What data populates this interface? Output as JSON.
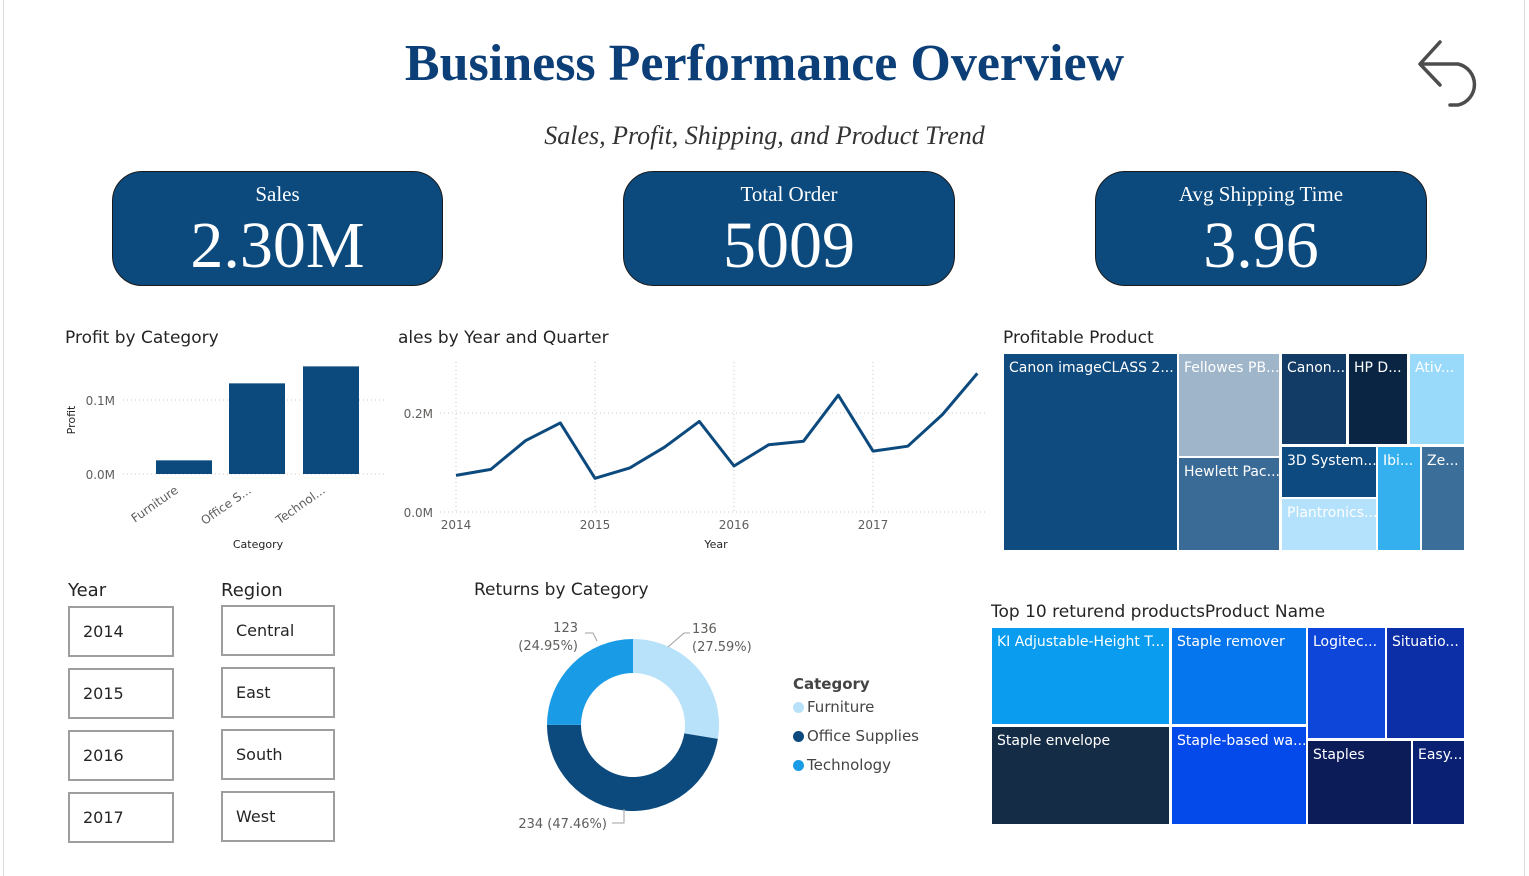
{
  "header": {
    "title": "Business Performance Overview",
    "subtitle": "Sales, Profit, Shipping, and Product Trend",
    "back_icon": "back-arrow-icon"
  },
  "kpis": {
    "sales": {
      "label": "Sales",
      "value": "2.30M"
    },
    "orders": {
      "label": "Total Order",
      "value": "5009"
    },
    "shipping": {
      "label": "Avg Shipping Time",
      "value": "3.96"
    }
  },
  "profit_chart": {
    "title": "Profit by Category",
    "xlabel": "Category",
    "ylabel": "Profit",
    "y_ticks": [
      "0.1M",
      "0.0M"
    ],
    "x_tick_labels": [
      "Furniture",
      "Office S...",
      "Technol..."
    ]
  },
  "sales_chart": {
    "title": "ales by Year and Quarter",
    "xlabel": "Year",
    "y_ticks": [
      "0.2M",
      "0.0M"
    ],
    "x_ticks": [
      "2014",
      "2015",
      "2016",
      "2017"
    ]
  },
  "returns_chart": {
    "title": "Returns by Category",
    "legend_title": "Category",
    "labels": [
      {
        "line1": "136",
        "line2": "(27.59%)"
      },
      {
        "line1": "234 (47.46%)"
      },
      {
        "line1": "123",
        "line2": "(24.95%)"
      }
    ],
    "legend": [
      "Furniture",
      "Office Supplies",
      "Technology"
    ]
  },
  "profitable_product": {
    "title": "Profitable Product",
    "tiles": [
      "Canon imageCLASS 2...",
      "Fellowes PB...",
      "Canon...",
      "HP D...",
      "Ativ...",
      "Hewlett Pac...",
      "3D System...",
      "Ibi...",
      "Ze...",
      "Plantronics..."
    ]
  },
  "top_returned": {
    "title": "Top 10 returend productsProduct Name",
    "tiles": [
      "KI Adjustable-Height T...",
      "Staple remover",
      "Logitec...",
      "Situatio...",
      "Staple envelope",
      "Staple-based wa...",
      "Staples",
      "Easy..."
    ]
  },
  "slicers": {
    "year": {
      "title": "Year",
      "items": [
        "2014",
        "2015",
        "2016",
        "2017"
      ]
    },
    "region": {
      "title": "Region",
      "items": [
        "Central",
        "East",
        "South",
        "West"
      ]
    }
  },
  "colors": {
    "primary": "#0c4a7e",
    "furniture": "#b8e1fa",
    "office_supplies": "#0c4a7e",
    "technology": "#1a9be6"
  },
  "chart_data": [
    {
      "type": "bar",
      "title": "Profit by Category",
      "xlabel": "Category",
      "ylabel": "Profit",
      "categories": [
        "Furniture",
        "Office Supplies",
        "Technology"
      ],
      "values": [
        18451,
        122491,
        145455
      ],
      "ylim": [
        0,
        150000
      ]
    },
    {
      "type": "line",
      "title": "ales by Year and Quarter",
      "xlabel": "Year",
      "x": [
        "2014 Q1",
        "2014 Q2",
        "2014 Q3",
        "2014 Q4",
        "2015 Q1",
        "2015 Q2",
        "2015 Q3",
        "2015 Q4",
        "2016 Q1",
        "2016 Q2",
        "2016 Q3",
        "2016 Q4",
        "2017 Q1",
        "2017 Q2",
        "2017 Q3",
        "2017 Q4"
      ],
      "values": [
        74000,
        86000,
        144000,
        180000,
        68000,
        89000,
        131000,
        183000,
        93000,
        136000,
        143000,
        236000,
        123000,
        133000,
        197000,
        280000
      ],
      "ylim": [
        0,
        300000
      ]
    },
    {
      "type": "pie",
      "title": "Returns by Category",
      "categories": [
        "Furniture",
        "Office Supplies",
        "Technology"
      ],
      "values": [
        136,
        234,
        123
      ],
      "percents": [
        27.59,
        47.46,
        24.95
      ]
    }
  ]
}
